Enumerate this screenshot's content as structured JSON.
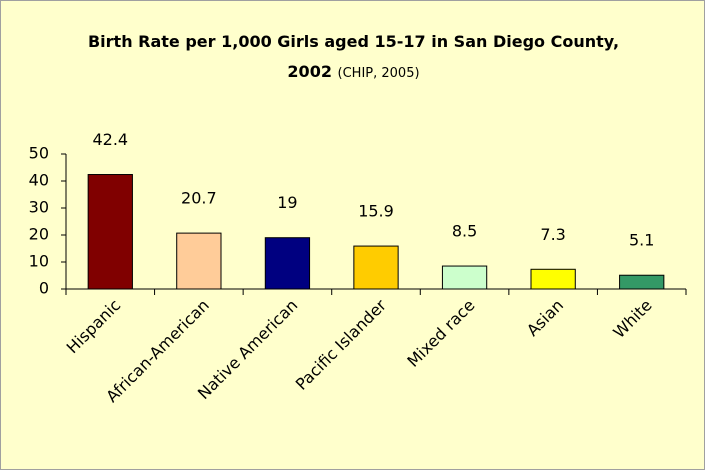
{
  "chart_data": {
    "type": "bar",
    "title": "Birth Rate per 1,000 Girls aged 15-17 in San Diego County, 2002",
    "subtitle": "(CHIP, 2005)",
    "categories": [
      "Hispanic",
      "African-American",
      "Native American",
      "Pacific Islander",
      "Mixed race",
      "Asian",
      "White"
    ],
    "values": [
      42.4,
      20.7,
      19,
      15.9,
      8.5,
      7.3,
      5.1
    ],
    "colors": [
      "#800000",
      "#ffcc99",
      "#000080",
      "#ffcc00",
      "#ccffcc",
      "#ffff00",
      "#339966"
    ],
    "ylim": [
      0,
      50
    ],
    "yticks": [
      0,
      10,
      20,
      30,
      40,
      50
    ],
    "grid": false
  }
}
